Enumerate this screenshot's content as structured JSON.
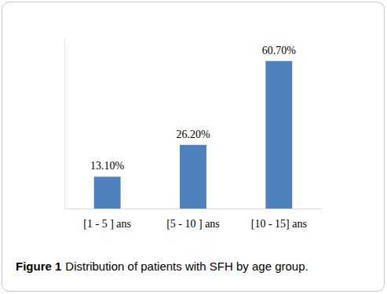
{
  "chart_data": {
    "type": "bar",
    "figure_label": "Figure 1",
    "title": "Distribution of patients with SFH by age group.",
    "categories": [
      "[1 - 5 ] ans",
      "[5 - 10 ] ans",
      "[10 - 15] ans"
    ],
    "values": [
      13.1,
      26.2,
      60.7
    ],
    "value_labels": [
      "13.10%",
      "26.20%",
      "60.70%"
    ],
    "color": "#4f81bd",
    "ylim": [
      0,
      70
    ],
    "data_labels": true,
    "tick_labels": "x",
    "grid": false
  }
}
